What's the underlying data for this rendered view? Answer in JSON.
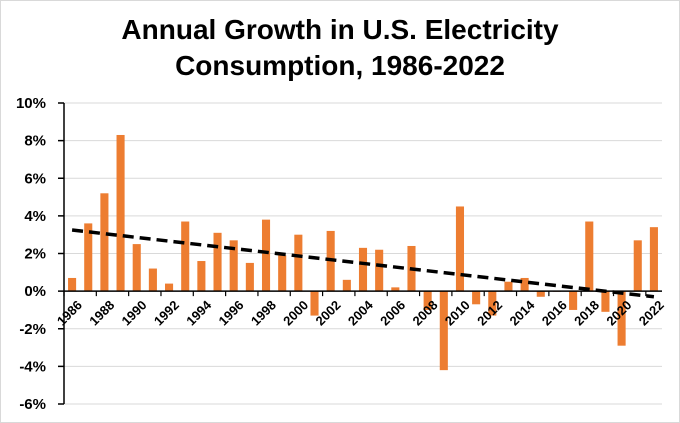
{
  "chart_data": {
    "type": "bar",
    "title_lines": [
      "Annual Growth in U.S. Electricity",
      "Consumption, 1986-2022"
    ],
    "xlabel": "",
    "ylabel": "",
    "ylim": [
      -6,
      10
    ],
    "y_ticks": [
      "10%",
      "8%",
      "6%",
      "4%",
      "2%",
      "0%",
      "-2%",
      "-4%",
      "-6%"
    ],
    "y_tick_values": [
      10,
      8,
      6,
      4,
      2,
      0,
      -2,
      -4,
      -6
    ],
    "x_tick_labels": [
      "1986",
      "1988",
      "1990",
      "1992",
      "1994",
      "1996",
      "1998",
      "2000",
      "2002",
      "2004",
      "2006",
      "2008",
      "2010",
      "2012",
      "2014",
      "2016",
      "2018",
      "2020",
      "2022"
    ],
    "categories": [
      1986,
      1987,
      1988,
      1989,
      1990,
      1991,
      1992,
      1993,
      1994,
      1995,
      1996,
      1997,
      1998,
      1999,
      2000,
      2001,
      2002,
      2003,
      2004,
      2005,
      2006,
      2007,
      2008,
      2009,
      2010,
      2011,
      2012,
      2013,
      2014,
      2015,
      2016,
      2017,
      2018,
      2019,
      2020,
      2021,
      2022
    ],
    "values": [
      0.7,
      3.6,
      5.2,
      8.3,
      2.5,
      1.2,
      0.4,
      3.7,
      1.6,
      3.1,
      2.7,
      1.5,
      3.8,
      1.9,
      3.0,
      -1.3,
      3.2,
      0.6,
      2.3,
      2.2,
      0.2,
      2.4,
      -1.0,
      -4.2,
      4.5,
      -0.7,
      -1.3,
      0.5,
      0.7,
      -0.3,
      0.0,
      -1.0,
      3.7,
      -1.1,
      -2.9,
      2.7,
      3.4
    ],
    "trendline": {
      "style": "dashed",
      "start": {
        "x": 1986,
        "y": 3.25
      },
      "end": {
        "x": 2022,
        "y": -0.3
      }
    },
    "grid": true,
    "legend": "none",
    "colors": {
      "bar": "#ED7D31",
      "trendline": "#000000",
      "grid": "#d9d9d9",
      "axis": "#000000"
    }
  }
}
